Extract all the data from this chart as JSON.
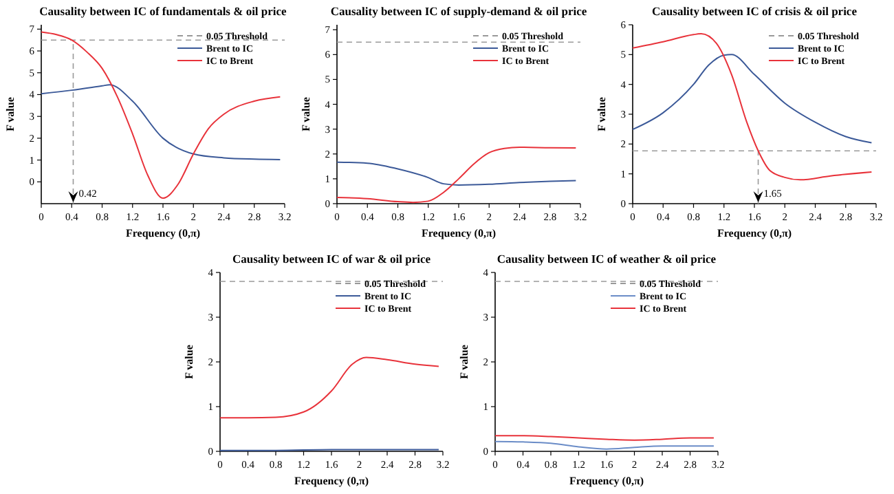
{
  "chart_data": [
    {
      "type": "line",
      "title": "Causality between IC of fundamentals & oil price",
      "xlabel": "Frequency (0,π)",
      "ylabel": "F value",
      "xlim": [
        0,
        3.2
      ],
      "xticks": [
        0,
        0.4,
        0.8,
        1.2,
        1.6,
        2,
        2.4,
        2.8,
        3.2
      ],
      "ylim": [
        -1,
        7.2
      ],
      "yticks": [
        0,
        1,
        2,
        3,
        4,
        5,
        6,
        7
      ],
      "legend": "top right",
      "ref_lines": [
        {
          "axis": "y",
          "value": 6.5,
          "label": "0.05 Threshold",
          "color": "#999999",
          "line_style": "dashed"
        },
        {
          "axis": "x",
          "value": 0.42,
          "label": "0.42",
          "color": "#999999",
          "line_style": "dashed"
        }
      ],
      "series": [
        {
          "name": "Brent to IC",
          "color": "#3b5998",
          "x": [
            0,
            0.4,
            0.8,
            0.9,
            1.2,
            1.6,
            2.0,
            2.4,
            2.8,
            3.14
          ],
          "values": [
            4.04,
            4.2,
            4.4,
            4.45,
            3.7,
            2.0,
            1.28,
            1.1,
            1.04,
            1.02
          ]
        },
        {
          "name": "IC to Brent",
          "color": "#e8323a",
          "x": [
            0,
            0.2,
            0.4,
            0.6,
            0.8,
            1.0,
            1.2,
            1.4,
            1.6,
            1.8,
            2.0,
            2.2,
            2.4,
            2.8,
            3.14
          ],
          "values": [
            6.87,
            6.75,
            6.5,
            5.95,
            5.2,
            3.9,
            2.2,
            0.3,
            -0.75,
            -0.1,
            1.28,
            2.45,
            3.1,
            3.7,
            3.9
          ]
        }
      ]
    },
    {
      "type": "line",
      "title": "Causality between IC of supply-demand & oil price",
      "xlabel": "Frequency (0,π)",
      "ylabel": "F value",
      "xlim": [
        0,
        3.2
      ],
      "xticks": [
        0,
        0.4,
        0.8,
        1.2,
        1.6,
        2,
        2.4,
        2.8,
        3.2
      ],
      "ylim": [
        0,
        7.2
      ],
      "yticks": [
        0,
        1,
        2,
        3,
        4,
        5,
        6,
        7
      ],
      "legend": "top right",
      "ref_lines": [
        {
          "axis": "y",
          "value": 6.5,
          "label": "0.05 Threshold",
          "color": "#999999",
          "line_style": "dashed"
        }
      ],
      "series": [
        {
          "name": "Brent to IC",
          "color": "#3b5998",
          "x": [
            0,
            0.4,
            0.8,
            1.2,
            1.4,
            1.6,
            2.0,
            2.4,
            2.8,
            3.14
          ],
          "values": [
            1.67,
            1.63,
            1.4,
            1.05,
            0.8,
            0.75,
            0.78,
            0.85,
            0.9,
            0.93
          ]
        },
        {
          "name": "IC to Brent",
          "color": "#e8323a",
          "x": [
            0,
            0.4,
            0.8,
            1.0,
            1.2,
            1.4,
            1.6,
            1.8,
            2.0,
            2.2,
            2.4,
            2.8,
            3.14
          ],
          "values": [
            0.25,
            0.2,
            0.08,
            0.05,
            0.1,
            0.45,
            1.0,
            1.6,
            2.05,
            2.22,
            2.27,
            2.25,
            2.24
          ]
        }
      ]
    },
    {
      "type": "line",
      "title": "Causality between IC of crisis & oil price",
      "xlabel": "Frequency (0,π)",
      "ylabel": "F value",
      "xlim": [
        0,
        3.2
      ],
      "xticks": [
        0,
        0.4,
        0.8,
        1.2,
        1.6,
        2,
        2.4,
        2.8,
        3.2
      ],
      "ylim": [
        0,
        6
      ],
      "yticks": [
        0,
        1,
        2,
        3,
        4,
        5,
        6
      ],
      "legend": "top right",
      "ref_lines": [
        {
          "axis": "y",
          "value": 1.77,
          "label": "0.05 Threshold",
          "color": "#999999",
          "line_style": "dashed"
        },
        {
          "axis": "x",
          "value": 1.65,
          "label": "1.65",
          "color": "#999999",
          "line_style": "dashed"
        }
      ],
      "series": [
        {
          "name": "Brent to IC",
          "color": "#3b5998",
          "x": [
            0,
            0.4,
            0.8,
            1.0,
            1.2,
            1.3,
            1.6,
            2.0,
            2.4,
            2.8,
            3.14
          ],
          "values": [
            2.49,
            3.05,
            4.0,
            4.65,
            4.98,
            5.0,
            4.33,
            3.37,
            2.73,
            2.25,
            2.04
          ]
        },
        {
          "name": "IC to Brent",
          "color": "#e8323a",
          "x": [
            0,
            0.4,
            0.8,
            0.9,
            1.1,
            1.3,
            1.5,
            1.65,
            1.8,
            2.0,
            2.2,
            2.6,
            3.14
          ],
          "values": [
            5.22,
            5.43,
            5.67,
            5.7,
            5.38,
            4.33,
            2.73,
            1.77,
            1.12,
            0.88,
            0.8,
            0.93,
            1.06
          ]
        }
      ]
    },
    {
      "type": "line",
      "title": "Causality between IC of war & oil price",
      "xlabel": "Frequency (0,π)",
      "ylabel": "F value",
      "xlim": [
        0,
        3.2
      ],
      "xticks": [
        0,
        0.4,
        0.8,
        1.2,
        1.6,
        2,
        2.4,
        2.8,
        3.2
      ],
      "ylim": [
        0,
        4
      ],
      "yticks": [
        0,
        1,
        2,
        3,
        4
      ],
      "legend": "top right",
      "ref_lines": [
        {
          "axis": "y",
          "value": 3.8,
          "label": "0.05 Threshold",
          "color": "#999999",
          "line_style": "dashed"
        }
      ],
      "series": [
        {
          "name": "Brent to IC",
          "color": "#3b5998",
          "x": [
            0,
            0.8,
            1.6,
            2.4,
            3.14
          ],
          "values": [
            0.02,
            0.02,
            0.04,
            0.04,
            0.04
          ]
        },
        {
          "name": "IC to Brent",
          "color": "#e8323a",
          "x": [
            0,
            0.4,
            0.8,
            1.2,
            1.6,
            1.9,
            2.1,
            2.4,
            2.8,
            3.14
          ],
          "values": [
            0.75,
            0.75,
            0.76,
            0.88,
            1.35,
            1.95,
            2.1,
            2.05,
            1.95,
            1.9
          ]
        }
      ]
    },
    {
      "type": "line",
      "title": "Causality between IC of weather & oil price",
      "xlabel": "Frequency (0,π)",
      "ylabel": "F value",
      "xlim": [
        0,
        3.2
      ],
      "xticks": [
        0,
        0.4,
        0.8,
        1.2,
        1.6,
        2,
        2.4,
        2.8,
        3.2
      ],
      "ylim": [
        0,
        4
      ],
      "yticks": [
        0,
        1,
        2,
        3,
        4
      ],
      "legend": "top right",
      "ref_lines": [
        {
          "axis": "y",
          "value": 3.8,
          "label": "0.05 Threshold",
          "color": "#999999",
          "line_style": "dashed"
        }
      ],
      "series": [
        {
          "name": "Brent to IC",
          "color": "#6a8cc7",
          "x": [
            0,
            0.4,
            0.8,
            1.2,
            1.6,
            2.0,
            2.4,
            2.8,
            3.14
          ],
          "values": [
            0.22,
            0.21,
            0.18,
            0.1,
            0.05,
            0.09,
            0.12,
            0.12,
            0.12
          ]
        },
        {
          "name": "IC to Brent",
          "color": "#e8323a",
          "x": [
            0,
            0.4,
            0.8,
            1.2,
            1.6,
            2.0,
            2.4,
            2.8,
            3.14
          ],
          "values": [
            0.35,
            0.35,
            0.33,
            0.3,
            0.27,
            0.25,
            0.27,
            0.3,
            0.3
          ]
        }
      ]
    }
  ]
}
